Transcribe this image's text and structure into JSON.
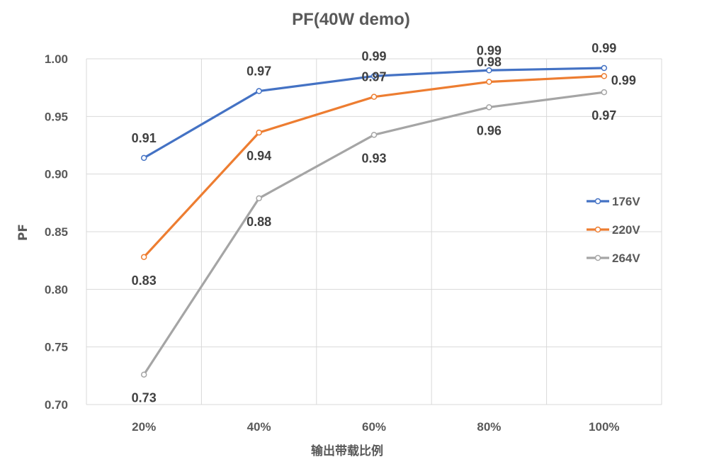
{
  "chart_data": {
    "type": "line",
    "title": "PF(40W demo)",
    "xlabel": "输出带载比例",
    "ylabel": "PF",
    "categories": [
      "20%",
      "40%",
      "60%",
      "80%",
      "100%"
    ],
    "ylim": [
      0.7,
      1.0
    ],
    "yticks": [
      "0.70",
      "0.75",
      "0.80",
      "0.85",
      "0.90",
      "0.95",
      "1.00"
    ],
    "grid": true,
    "legend_position": "right",
    "series": [
      {
        "name": "176V",
        "color": "#4472C4",
        "values": [
          0.914,
          0.972,
          0.985,
          0.99,
          0.992
        ],
        "labels": [
          "0.91",
          "0.97",
          "0.99",
          "0.99",
          "0.99"
        ]
      },
      {
        "name": "220V",
        "color": "#ED7D31",
        "values": [
          0.828,
          0.936,
          0.967,
          0.98,
          0.985
        ],
        "labels": [
          "0.83",
          "0.94",
          "0.97",
          "0.98",
          "0.99"
        ]
      },
      {
        "name": "264V",
        "color": "#A5A5A5",
        "values": [
          0.726,
          0.879,
          0.934,
          0.958,
          0.971
        ],
        "labels": [
          "0.73",
          "0.88",
          "0.93",
          "0.96",
          "0.97"
        ]
      }
    ]
  }
}
